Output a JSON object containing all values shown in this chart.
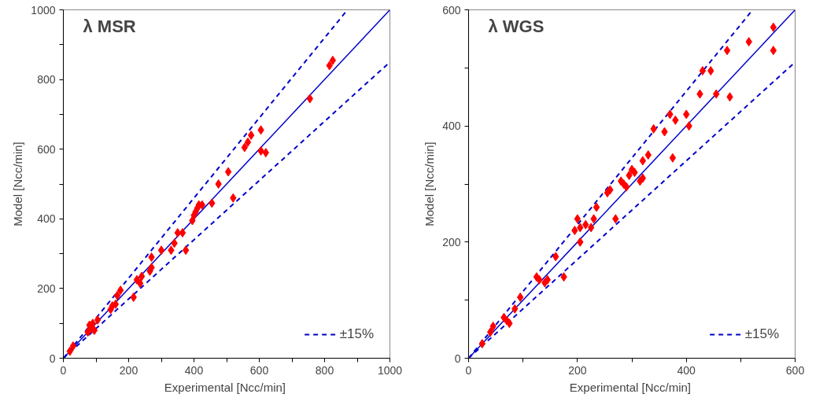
{
  "chart_data": [
    {
      "type": "scatter",
      "annotations": [
        "λ MSR"
      ],
      "xlabel": "Experimental  [Ncc/min]",
      "ylabel": "Model [Ncc/min]",
      "xlim": [
        0,
        1000
      ],
      "ylim": [
        0,
        1000
      ],
      "xticks": [
        0,
        {
          "value": 100,
          "label": null
        },
        200,
        {
          "value": 300,
          "label": null
        },
        400,
        {
          "value": 500,
          "label": null
        },
        600,
        {
          "value": 700,
          "label": null
        },
        800,
        {
          "value": 900,
          "label": null
        },
        1000
      ],
      "yticks": [
        0,
        {
          "value": 100,
          "label": null
        },
        200,
        {
          "value": 300,
          "label": null
        },
        400,
        {
          "value": 500,
          "label": null
        },
        600,
        {
          "value": 700,
          "label": null
        },
        800,
        {
          "value": 900,
          "label": null
        },
        1000
      ],
      "grid": false,
      "legend": "bottom right",
      "series": [
        {
          "type": "line",
          "color": "#0000cc",
          "line_style": "solid",
          "x": [
            0,
            1000
          ],
          "values": [
            0,
            1000
          ]
        },
        {
          "type": "line",
          "name": "±15%",
          "color": "#0000cc",
          "line_style": "dashed",
          "x": [
            0,
            870
          ],
          "values": [
            0,
            1000
          ]
        },
        {
          "type": "line",
          "color": "#0000cc",
          "line_style": "dashed",
          "x": [
            0,
            1000
          ],
          "values": [
            0,
            850
          ]
        },
        {
          "color": "#ff0000",
          "marker": "diamond",
          "x": [
            20,
            30,
            75,
            80,
            90,
            95,
            85,
            105,
            145,
            150,
            160,
            165,
            175,
            215,
            225,
            235,
            240,
            265,
            270,
            270,
            300,
            330,
            340,
            350,
            365,
            375,
            395,
            400,
            405,
            410,
            415,
            425,
            455,
            475,
            505,
            520,
            555,
            565,
            575,
            605,
            605,
            620,
            755,
            815,
            825
          ],
          "values": [
            20,
            35,
            75,
            95,
            100,
            80,
            85,
            110,
            140,
            150,
            155,
            180,
            195,
            175,
            225,
            215,
            235,
            250,
            260,
            290,
            310,
            310,
            330,
            360,
            360,
            310,
            395,
            410,
            420,
            430,
            440,
            440,
            445,
            500,
            535,
            460,
            605,
            620,
            640,
            655,
            595,
            590,
            745,
            840,
            855
          ]
        }
      ]
    },
    {
      "type": "scatter",
      "annotations": [
        "λ WGS"
      ],
      "xlabel": "Experimental  [Ncc/min]",
      "ylabel": "Model [Ncc/min]",
      "xlim": [
        0,
        600
      ],
      "ylim": [
        0,
        600
      ],
      "xticks": [
        0,
        {
          "value": 100,
          "label": null
        },
        200,
        {
          "value": 300,
          "label": null
        },
        400,
        {
          "value": 500,
          "label": null
        },
        600
      ],
      "yticks": [
        0,
        {
          "value": 100,
          "label": null
        },
        200,
        {
          "value": 300,
          "label": null
        },
        400,
        {
          "value": 500,
          "label": null
        },
        600
      ],
      "grid": false,
      "legend": "bottom right",
      "series": [
        {
          "type": "line",
          "color": "#0000cc",
          "line_style": "solid",
          "x": [
            0,
            600
          ],
          "values": [
            0,
            600
          ]
        },
        {
          "type": "line",
          "name": "±15%",
          "color": "#0000cc",
          "line_style": "dashed",
          "x": [
            0,
            522
          ],
          "values": [
            0,
            600
          ]
        },
        {
          "type": "line",
          "color": "#0000cc",
          "line_style": "dashed",
          "x": [
            0,
            600
          ],
          "values": [
            0,
            510
          ]
        },
        {
          "color": "#ff0000",
          "marker": "diamond",
          "x": [
            25,
            40,
            45,
            65,
            70,
            75,
            85,
            95,
            125,
            130,
            140,
            145,
            160,
            175,
            195,
            200,
            205,
            205,
            215,
            225,
            230,
            235,
            255,
            260,
            270,
            280,
            285,
            290,
            295,
            300,
            305,
            315,
            320,
            320,
            330,
            340,
            360,
            370,
            375,
            380,
            400,
            405,
            425,
            430,
            445,
            455,
            480,
            475,
            515,
            560,
            560
          ],
          "values": [
            25,
            45,
            55,
            70,
            65,
            60,
            85,
            105,
            140,
            135,
            130,
            135,
            175,
            140,
            220,
            240,
            200,
            225,
            230,
            225,
            240,
            260,
            285,
            290,
            240,
            305,
            300,
            295,
            315,
            325,
            320,
            305,
            310,
            340,
            350,
            395,
            390,
            420,
            345,
            410,
            420,
            400,
            455,
            495,
            495,
            455,
            450,
            530,
            545,
            570,
            530
          ]
        }
      ]
    }
  ]
}
